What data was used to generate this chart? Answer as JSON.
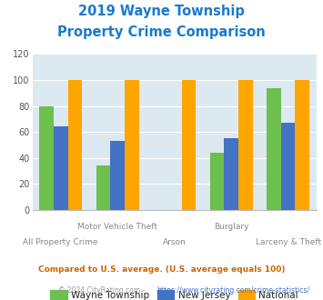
{
  "title_line1": "2019 Wayne Township",
  "title_line2": "Property Crime Comparison",
  "title_color": "#1a7acc",
  "categories": [
    "All Property Crime",
    "Motor Vehicle Theft",
    "Arson",
    "Burglary",
    "Larceny & Theft"
  ],
  "wayne_values": [
    80,
    34,
    0,
    44,
    94
  ],
  "nj_values": [
    64,
    53,
    0,
    55,
    67
  ],
  "national_values": [
    100,
    100,
    100,
    100,
    100
  ],
  "arson_show_wayne": false,
  "arson_show_nj": false,
  "wayne_color": "#6dbf4e",
  "nj_color": "#4472c4",
  "national_color": "#ffa500",
  "ylim": [
    0,
    120
  ],
  "yticks": [
    0,
    20,
    40,
    60,
    80,
    100,
    120
  ],
  "background_color": "#dce9f0",
  "legend_labels": [
    "Wayne Township",
    "New Jersey",
    "National"
  ],
  "cat_labels_row1": [
    "",
    "Motor Vehicle Theft",
    "",
    "Burglary",
    ""
  ],
  "cat_labels_row2": [
    "All Property Crime",
    "",
    "Arson",
    "",
    "Larceny & Theft"
  ],
  "label_color": "#888888",
  "footnote1": "Compared to U.S. average. (U.S. average equals 100)",
  "footnote2": "© 2024 CityRating.com - https://www.cityrating.com/crime-statistics/",
  "footnote1_color": "#cc6600",
  "footnote2_color": "#999999",
  "footnote2_link_color": "#4472c4"
}
